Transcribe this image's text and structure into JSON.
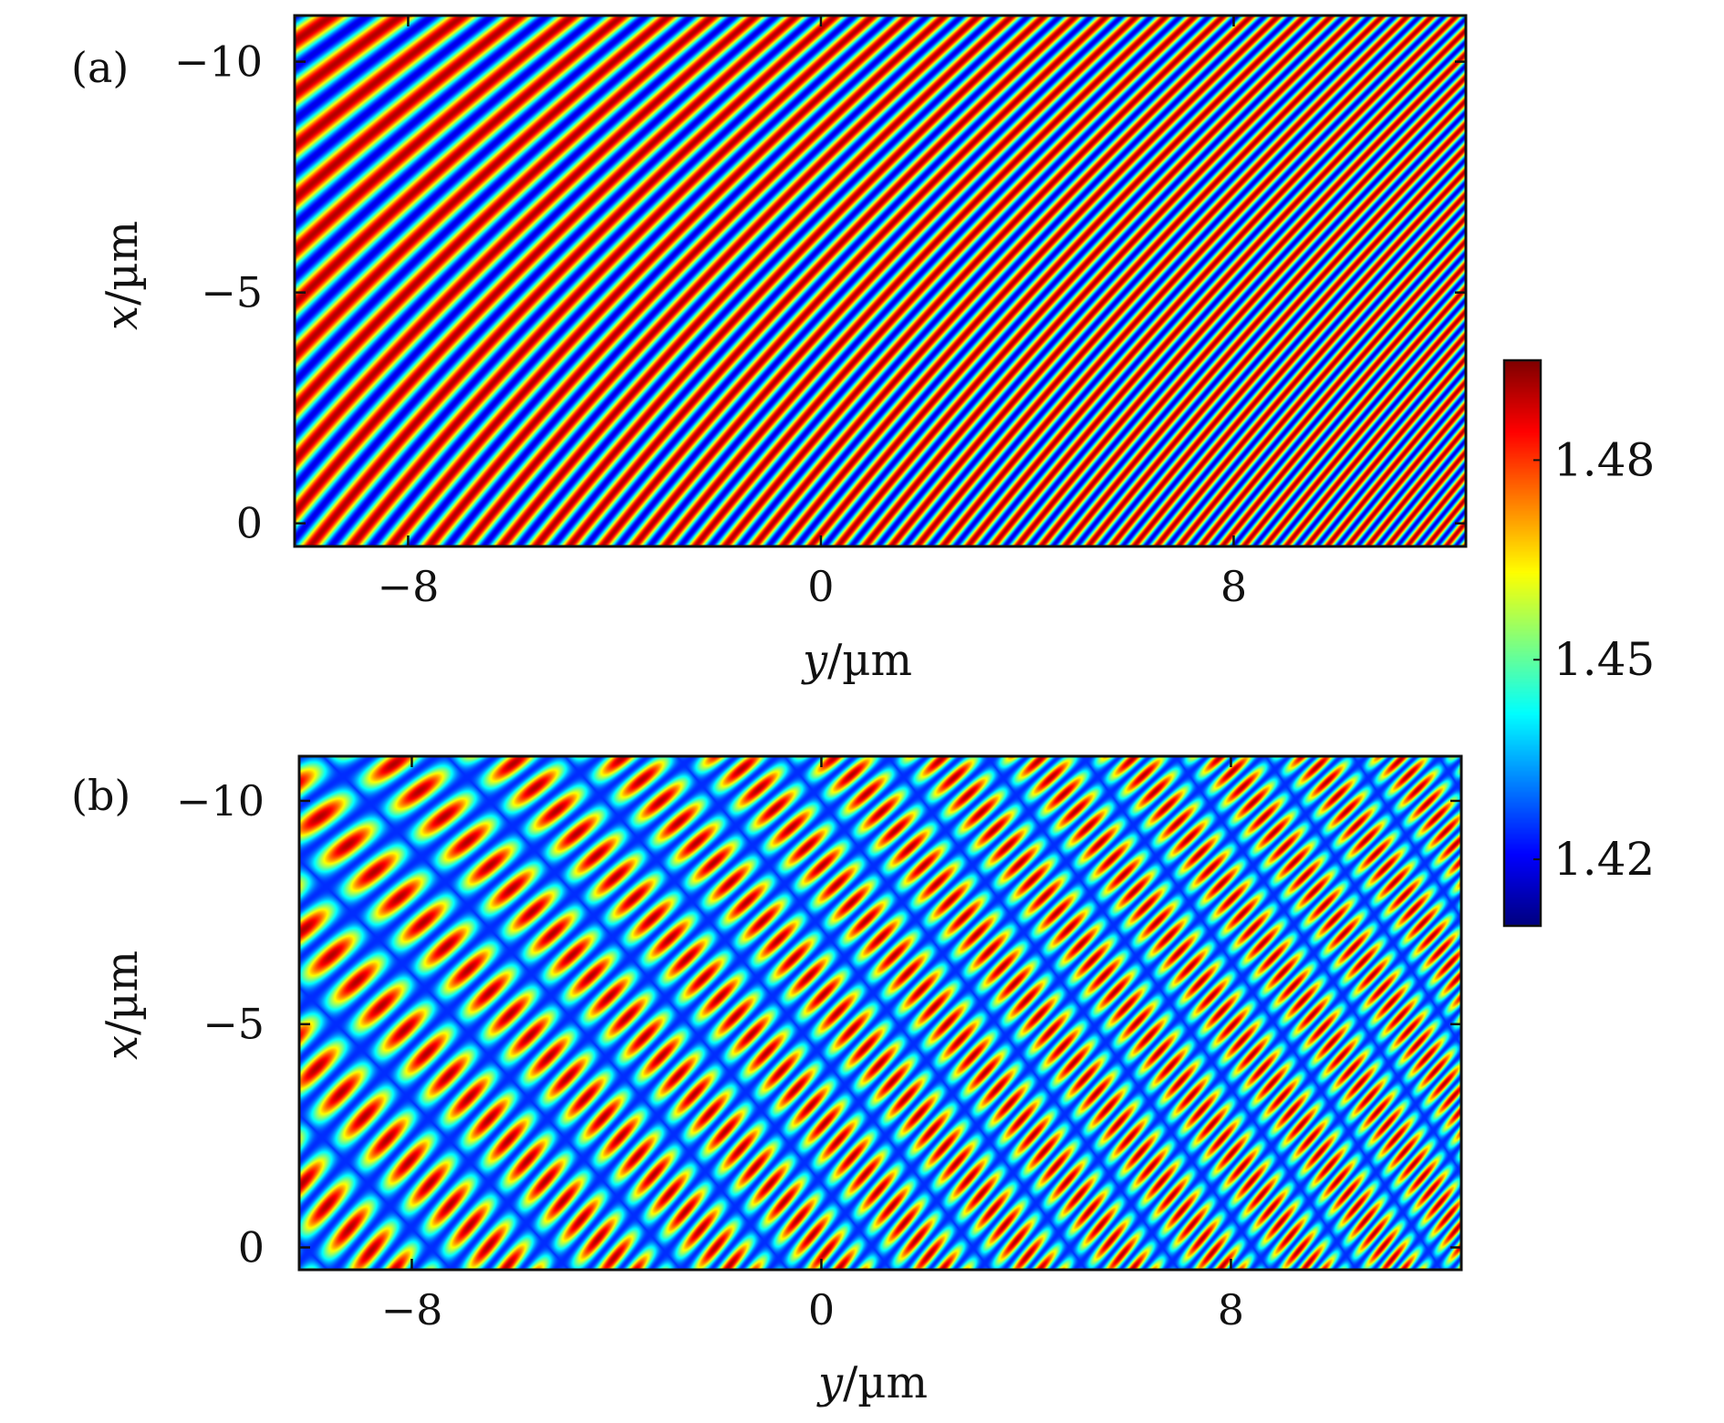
{
  "chart_data": [
    {
      "type": "heatmap",
      "panel_label": "(a)",
      "xlabel": "y/µm",
      "ylabel": "x/µm",
      "xlabel_var": "y",
      "ylabel_var": "x",
      "unit": "/µm",
      "xlim": [
        -10.2,
        12.5
      ],
      "ylim": [
        0.5,
        -11
      ],
      "xticks": [
        -8,
        0,
        8
      ],
      "xtick_labels": [
        "−8",
        "0",
        "8"
      ],
      "yticks": [
        -10,
        -5,
        0
      ],
      "ytick_labels": [
        "−10",
        "−5",
        "0"
      ],
      "pattern": "single-set oblique fringes, period ~0.55 µm, fringes curve toward horizontal at large y",
      "value_range": [
        1.41,
        1.495
      ]
    },
    {
      "type": "heatmap",
      "panel_label": "(b)",
      "xlabel": "y/µm",
      "ylabel": "x/µm",
      "xlabel_var": "y",
      "ylabel_var": "x",
      "unit": "/µm",
      "xlim": [
        -10.2,
        12.5
      ],
      "ylim": [
        0.5,
        -11
      ],
      "xticks": [
        -8,
        0,
        8
      ],
      "xtick_labels": [
        "−8",
        "0",
        "8"
      ],
      "yticks": [
        -10,
        -5,
        0
      ],
      "ytick_labels": [
        "−10",
        "−5",
        "0"
      ],
      "pattern": "fringes modulated by a second crossing envelope (low-index blue bands)",
      "value_range": [
        1.41,
        1.495
      ]
    }
  ],
  "colorbar": {
    "colormap": "jet",
    "range": [
      1.41,
      1.495
    ],
    "ticks": [
      1.42,
      1.45,
      1.48
    ],
    "tick_labels": [
      "1.42",
      "1.45",
      "1.48"
    ]
  }
}
